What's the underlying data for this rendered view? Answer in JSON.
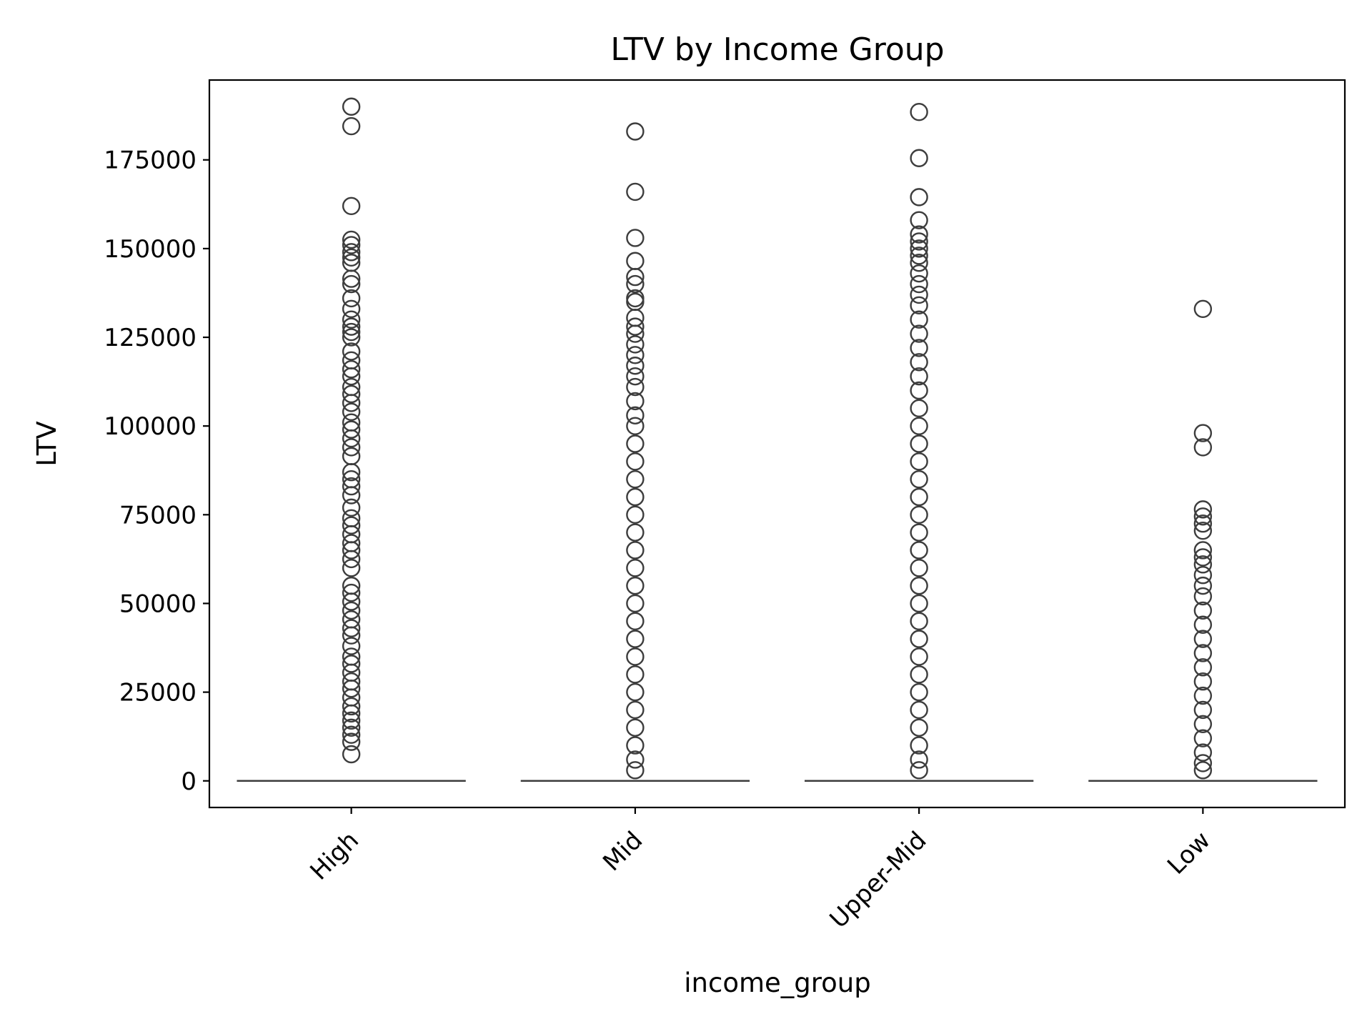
{
  "chart_data": {
    "type": "box",
    "title": "LTV by Income Group",
    "xlabel": "income_group",
    "ylabel": "LTV",
    "categories": [
      "High",
      "Mid",
      "Upper-Mid",
      "Low"
    ],
    "ylim": [
      -7500,
      197500
    ],
    "yticks": [
      0,
      25000,
      50000,
      75000,
      100000,
      125000,
      150000,
      175000
    ],
    "grid": false,
    "legend": "none",
    "box_color": "#3d3d3d",
    "median": [
      0,
      0,
      0,
      0
    ],
    "q1": [
      0,
      0,
      0,
      0
    ],
    "q3": [
      0,
      0,
      0,
      0
    ],
    "outliers": [
      [
        190000,
        184500,
        162000,
        152500,
        151000,
        149000,
        147500,
        146000,
        141500,
        140000,
        136000,
        133000,
        130000,
        128000,
        126500,
        125000,
        121000,
        118500,
        116000,
        114000,
        111000,
        109000,
        106500,
        104000,
        101000,
        99000,
        96500,
        94000,
        91500,
        87000,
        85000,
        83000,
        80500,
        77000,
        74000,
        72000,
        69500,
        67000,
        65000,
        62500,
        60000,
        55000,
        53000,
        50500,
        48000,
        45500,
        43000,
        41000,
        38000,
        35000,
        33000,
        30500,
        28000,
        26000,
        23500,
        21000,
        19000,
        17000,
        15000,
        13000,
        11000,
        7500
      ],
      [
        183000,
        166000,
        153000,
        146500,
        142000,
        140000,
        136000,
        135000,
        130500,
        128000,
        126000,
        123000,
        120000,
        117000,
        114000,
        111000,
        107000,
        103000,
        100000,
        95000,
        90000,
        85000,
        80000,
        75000,
        70000,
        65000,
        60000,
        55000,
        50000,
        45000,
        40000,
        35000,
        30000,
        25000,
        20000,
        15000,
        10000,
        6000,
        3000
      ],
      [
        188500,
        175500,
        164500,
        158000,
        154000,
        152000,
        150000,
        148000,
        146000,
        143000,
        140000,
        137000,
        134000,
        130000,
        126000,
        122000,
        118000,
        114000,
        110000,
        105000,
        100000,
        95000,
        90000,
        85000,
        80000,
        75000,
        70000,
        65000,
        60000,
        55000,
        50000,
        45000,
        40000,
        35000,
        30000,
        25000,
        20000,
        15000,
        10000,
        6000,
        3000
      ],
      [
        133000,
        98000,
        94000,
        76500,
        74500,
        72500,
        70500,
        65000,
        63000,
        61000,
        58000,
        55000,
        52000,
        48000,
        44000,
        40000,
        36000,
        32000,
        28000,
        24000,
        20000,
        16000,
        12000,
        8000,
        5000,
        3000
      ]
    ]
  }
}
